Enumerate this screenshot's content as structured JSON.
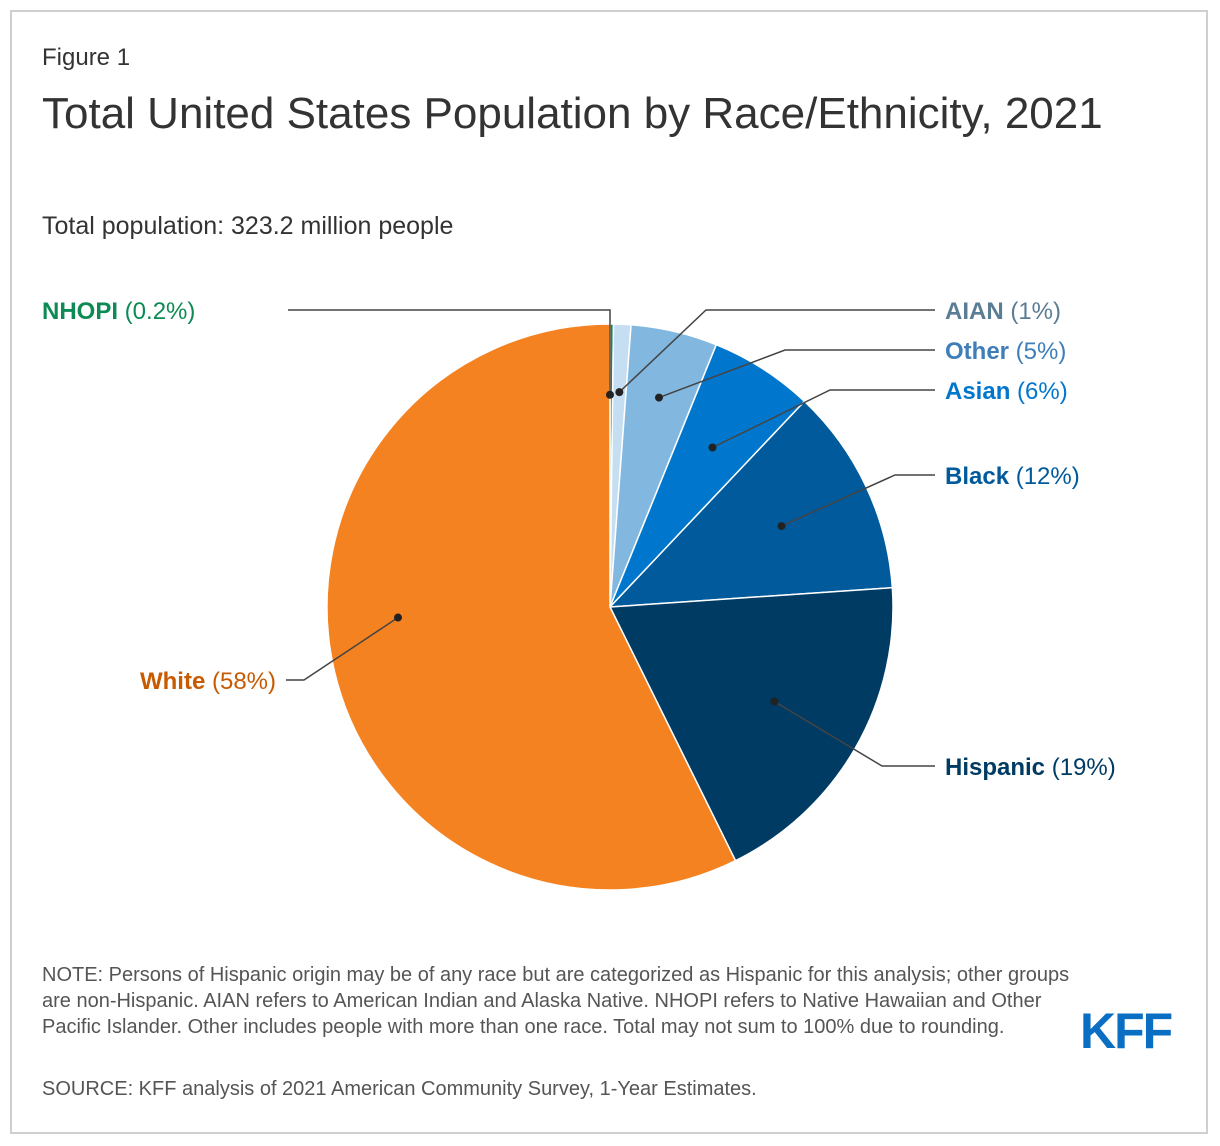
{
  "figure_label": "Figure 1",
  "chart_data": {
    "type": "pie",
    "title": "Total United States Population by Race/Ethnicity, 2021",
    "subtitle": "Total population: 323.2 million people",
    "start_angle_deg": 0,
    "direction": "clockwise",
    "slices": [
      {
        "name": "NHOPI",
        "pct_label": "(0.2%)",
        "value": 0.2,
        "color": "#0E8B55"
      },
      {
        "name": "AIAN",
        "pct_label": "(1%)",
        "value": 1,
        "color": "#C6DEF2"
      },
      {
        "name": "Other",
        "pct_label": "(5%)",
        "value": 5,
        "color": "#82B8E0"
      },
      {
        "name": "Asian",
        "pct_label": "(6%)",
        "value": 6,
        "color": "#0077CC"
      },
      {
        "name": "Black",
        "pct_label": "(12%)",
        "value": 12,
        "color": "#005A9C"
      },
      {
        "name": "Hispanic",
        "pct_label": "(19%)",
        "value": 19,
        "color": "#003B64"
      },
      {
        "name": "White",
        "pct_label": "(58%)",
        "value": 58,
        "color": "#F58220"
      }
    ],
    "label_colors": {
      "NHOPI": "#0E8B55",
      "AIAN": "#5A7D96",
      "Other": "#3F7EB8",
      "Asian": "#0077CC",
      "Black": "#005A9C",
      "Hispanic": "#003B64",
      "White": "#C85A00"
    }
  },
  "note": "NOTE: Persons of Hispanic origin may be of any race but are categorized as Hispanic for this analysis; other groups are non-Hispanic. AIAN refers to American Indian and Alaska Native. NHOPI refers to Native Hawaiian and Other Pacific Islander. Other includes people with more than one race. Total may not sum to 100% due to rounding.",
  "source": "SOURCE: KFF analysis of 2021 American Community Survey, 1-Year Estimates.",
  "logo": {
    "text": "KFF",
    "color": "#0A6FC2"
  }
}
